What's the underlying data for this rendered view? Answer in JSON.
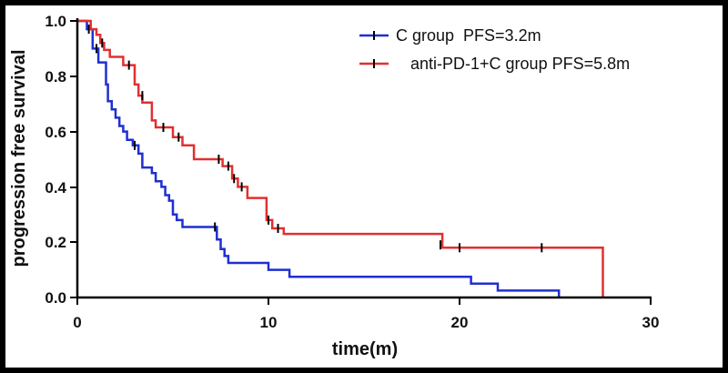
{
  "chart_data": {
    "type": "line",
    "title": "",
    "xlabel": "time(m)",
    "ylabel": "progression free survival",
    "xlim": [
      0,
      30
    ],
    "ylim": [
      0,
      1.0
    ],
    "x_ticks": [
      "0",
      "10",
      "20",
      "30"
    ],
    "y_ticks": [
      "0.0",
      "0.2",
      "0.4",
      "0.6",
      "0.8",
      "1.0"
    ],
    "legend_position": "top-right",
    "grid": false,
    "series": [
      {
        "name": "C group  PFS=3.2m",
        "color": "#1f2fd0",
        "steps": [
          [
            0,
            1.0
          ],
          [
            0.5,
            0.97
          ],
          [
            0.8,
            0.9
          ],
          [
            1.1,
            0.85
          ],
          [
            1.5,
            0.77
          ],
          [
            1.6,
            0.71
          ],
          [
            1.8,
            0.68
          ],
          [
            2.0,
            0.65
          ],
          [
            2.2,
            0.62
          ],
          [
            2.4,
            0.6
          ],
          [
            2.6,
            0.57
          ],
          [
            2.9,
            0.55
          ],
          [
            3.2,
            0.52
          ],
          [
            3.4,
            0.47
          ],
          [
            3.9,
            0.45
          ],
          [
            4.1,
            0.42
          ],
          [
            4.4,
            0.4
          ],
          [
            4.6,
            0.37
          ],
          [
            4.8,
            0.35
          ],
          [
            5.0,
            0.3
          ],
          [
            5.2,
            0.28
          ],
          [
            5.5,
            0.255
          ],
          [
            7.0,
            0.255
          ],
          [
            7.3,
            0.21
          ],
          [
            7.5,
            0.175
          ],
          [
            7.7,
            0.15
          ],
          [
            7.9,
            0.125
          ],
          [
            9.5,
            0.125
          ],
          [
            10.0,
            0.1
          ],
          [
            10.9,
            0.1
          ],
          [
            11.1,
            0.075
          ],
          [
            20.5,
            0.075
          ],
          [
            20.6,
            0.05
          ],
          [
            22.0,
            0.025
          ],
          [
            25.2,
            0.025
          ],
          [
            25.2,
            0.0
          ]
        ],
        "censored": [
          [
            0.6,
            0.97
          ],
          [
            1.0,
            0.9
          ],
          [
            3.0,
            0.55
          ],
          [
            7.2,
            0.255
          ]
        ]
      },
      {
        "name": "anti-PD-1+C group PFS=5.8m",
        "color": "#e03030",
        "steps": [
          [
            0,
            1.0
          ],
          [
            0.7,
            0.97
          ],
          [
            1.0,
            0.95
          ],
          [
            1.2,
            0.92
          ],
          [
            1.4,
            0.895
          ],
          [
            1.7,
            0.87
          ],
          [
            2.4,
            0.84
          ],
          [
            2.9,
            0.84
          ],
          [
            3.0,
            0.77
          ],
          [
            3.2,
            0.73
          ],
          [
            3.4,
            0.705
          ],
          [
            3.8,
            0.705
          ],
          [
            3.9,
            0.64
          ],
          [
            4.1,
            0.615
          ],
          [
            4.9,
            0.615
          ],
          [
            5.0,
            0.58
          ],
          [
            5.5,
            0.55
          ],
          [
            6.1,
            0.5
          ],
          [
            7.5,
            0.5
          ],
          [
            7.6,
            0.475
          ],
          [
            8.1,
            0.43
          ],
          [
            8.4,
            0.4
          ],
          [
            8.9,
            0.36
          ],
          [
            9.8,
            0.36
          ],
          [
            9.9,
            0.28
          ],
          [
            10.2,
            0.25
          ],
          [
            10.8,
            0.23
          ],
          [
            11.0,
            0.23
          ],
          [
            19.0,
            0.23
          ],
          [
            19.1,
            0.18
          ],
          [
            27.5,
            0.18
          ],
          [
            27.5,
            0.0
          ]
        ],
        "censored": [
          [
            1.3,
            0.92
          ],
          [
            2.7,
            0.84
          ],
          [
            3.4,
            0.73
          ],
          [
            4.5,
            0.615
          ],
          [
            5.3,
            0.58
          ],
          [
            7.4,
            0.5
          ],
          [
            7.9,
            0.475
          ],
          [
            8.2,
            0.43
          ],
          [
            8.6,
            0.4
          ],
          [
            10.0,
            0.28
          ],
          [
            10.5,
            0.25
          ],
          [
            19.0,
            0.19
          ],
          [
            20.0,
            0.18
          ],
          [
            24.3,
            0.18
          ]
        ]
      }
    ]
  }
}
